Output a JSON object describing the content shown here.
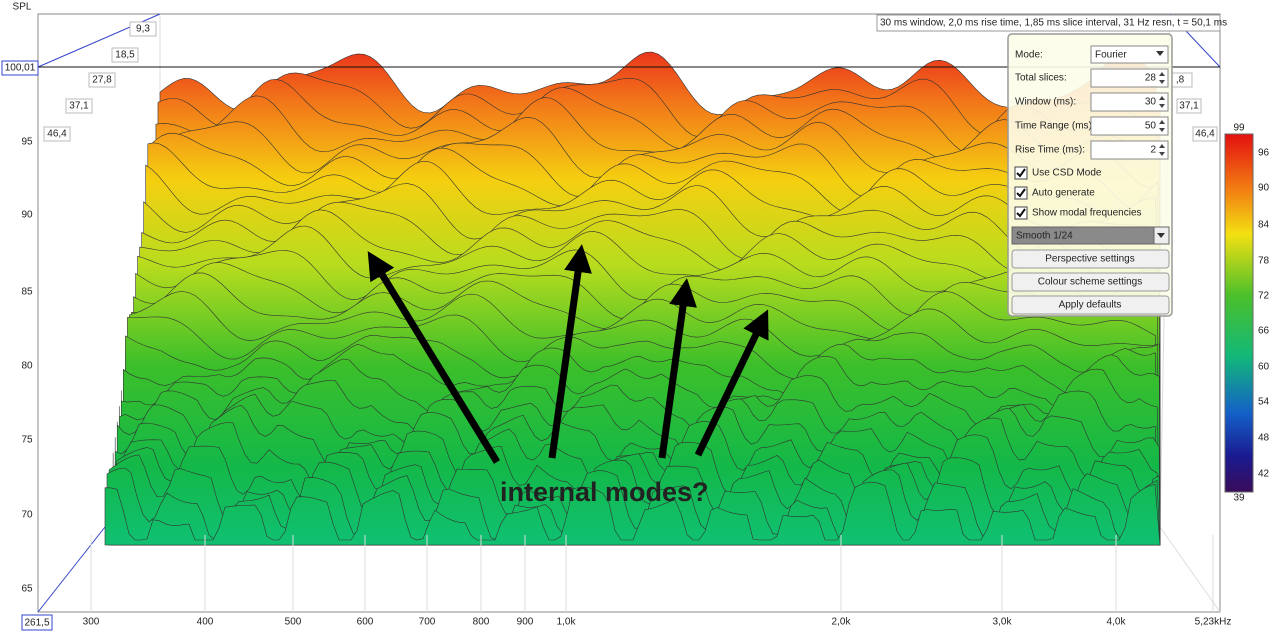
{
  "plot": {
    "y_axis_title": "SPL",
    "y_ticks": [
      "95",
      "90",
      "85",
      "80",
      "75",
      "70",
      "65"
    ],
    "y_cursor": "100,01",
    "x_cursor": "261,5",
    "x_ticks": [
      "300",
      "400",
      "500",
      "600",
      "700",
      "800",
      "900",
      "1,0k",
      "2,0k",
      "3,0k",
      "4,0k",
      "5,23kHz"
    ],
    "time_labels_left": [
      "9,3",
      "18,5",
      "27,8",
      "37,1",
      "46,4"
    ],
    "time_labels_right": [
      ",8",
      "37,1",
      "46,4"
    ],
    "info": "30 ms window, 2,0 ms rise time, 1,85 ms slice interval, 31 Hz resn, t = 50,1 ms"
  },
  "settings": {
    "mode_label": "Mode:",
    "mode_value": "Fourier",
    "fields": [
      {
        "label": "Total slices:",
        "value": "28"
      },
      {
        "label": "Window (ms):",
        "value": "30"
      },
      {
        "label": "Time Range (ms):",
        "value": "50"
      },
      {
        "label": "Rise Time (ms):",
        "value": "2"
      }
    ],
    "checkboxes": [
      "Use CSD Mode",
      "Auto generate",
      "Show modal frequencies"
    ],
    "smoothing": "Smooth 1/24",
    "buttons": [
      "Perspective settings",
      "Colour scheme settings",
      "Apply defaults"
    ]
  },
  "color_scale": {
    "max": "99",
    "ticks": [
      "96",
      "90",
      "84",
      "78",
      "72",
      "66",
      "60",
      "54",
      "48",
      "42"
    ],
    "min": "39"
  },
  "annotation": "internal modes?"
}
